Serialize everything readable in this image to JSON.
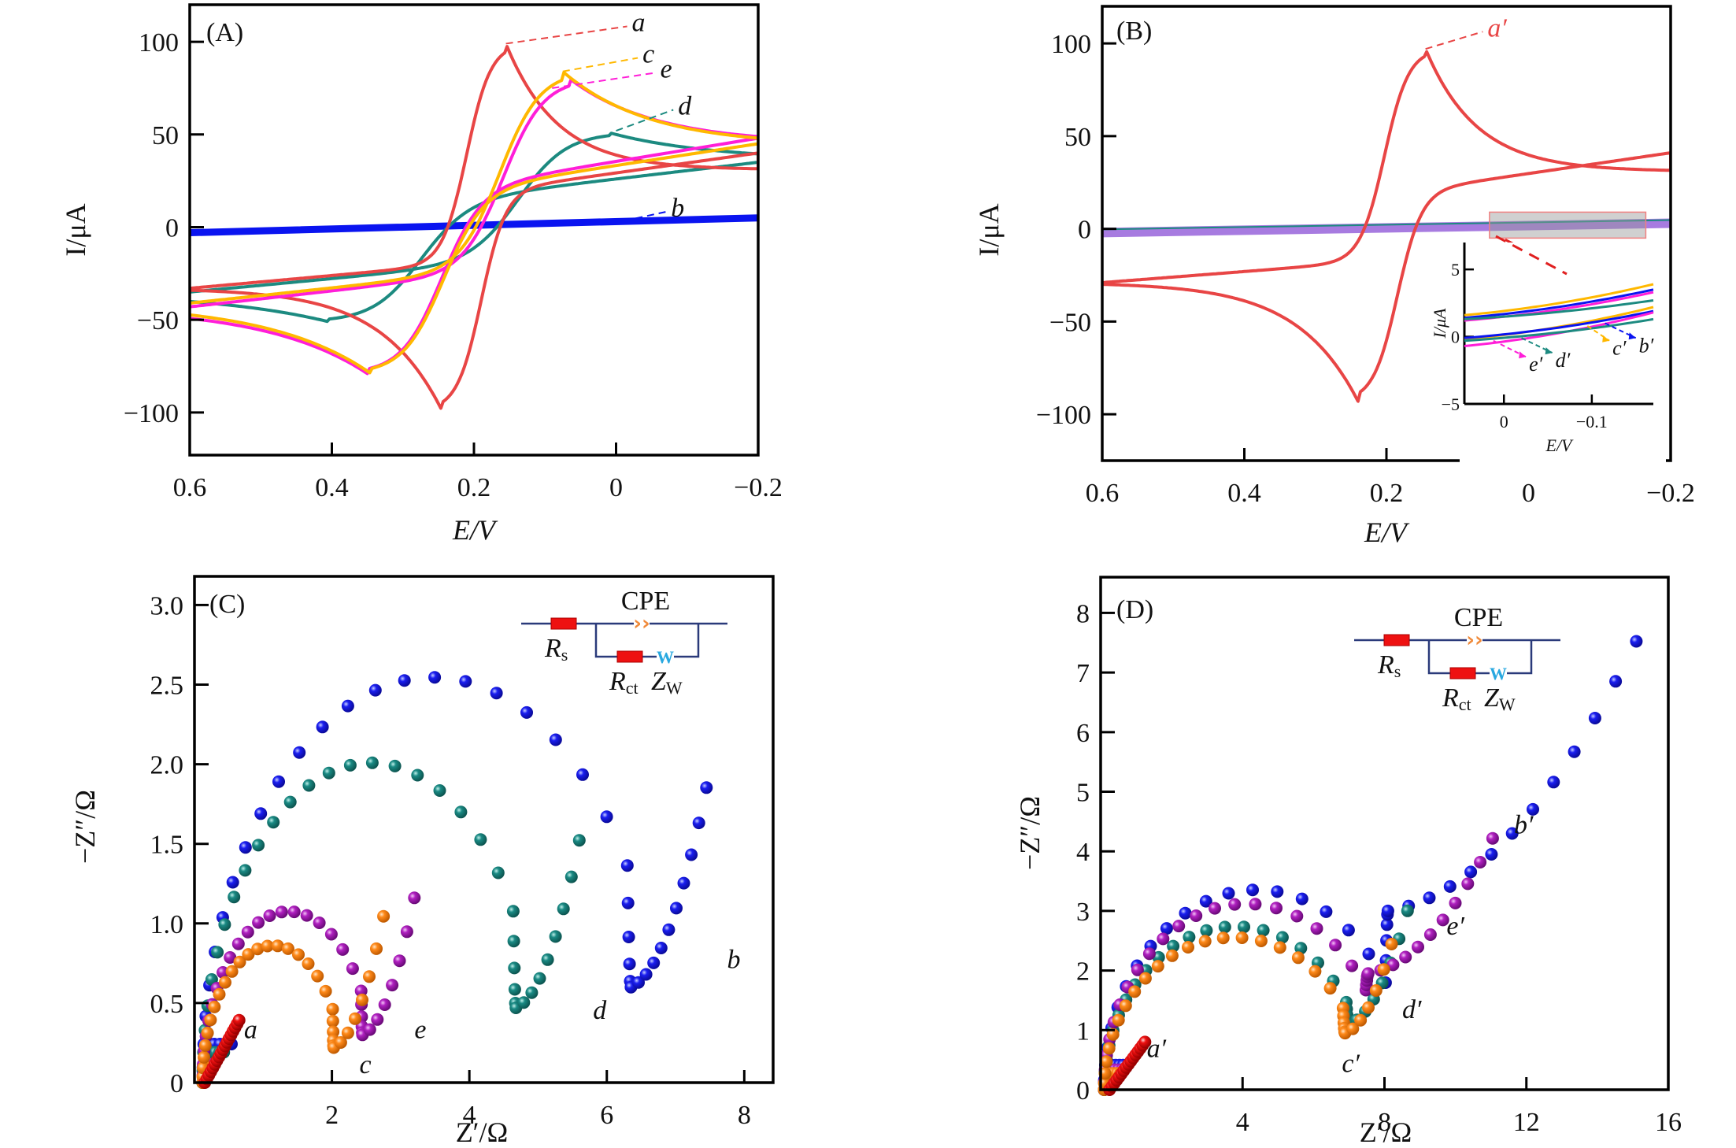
{
  "figure": {
    "panels": [
      "A",
      "B",
      "C",
      "D"
    ]
  },
  "colors": {
    "a": "#e84545",
    "b": "#0a14f0",
    "c": "#ffb800",
    "d": "#1c8a80",
    "e": "#ff1ed8",
    "bprime_flat": "#a77be0",
    "eis_a": "#ee1010",
    "eis_b": "#1616e6",
    "eis_c": "#ff8a1a",
    "eis_d": "#1a8a84",
    "eis_e": "#b020c0",
    "resistor": "#ee1111",
    "wire": "#2a3a7a",
    "cpe": "#f08a3a",
    "warburg": "#28a8e0"
  },
  "chart_data": [
    {
      "id": "A",
      "type": "line",
      "panel_tag": "(A)",
      "xlabel": "E/V",
      "ylabel": "I/μA",
      "xlim": [
        0.6,
        -0.2
      ],
      "ylim": [
        -123,
        120
      ],
      "xticks": [
        0.6,
        0.4,
        0.2,
        0,
        -0.2
      ],
      "xtick_labels": [
        "0.6",
        "0.4",
        "0.2",
        "0",
        "−0.2"
      ],
      "yticks": [
        100,
        50,
        0,
        -50,
        -100
      ],
      "ytick_labels": [
        "100",
        "50",
        "0",
        "−50",
        "−100"
      ],
      "series": [
        {
          "name": "a",
          "color_key": "a",
          "Epa": 0.155,
          "Ipa": 99,
          "Epc": 0.245,
          "Ipc": -99,
          "width": 0.045,
          "start_ox": -33,
          "end_ox": 31,
          "start_red": -33,
          "end_red": 40,
          "cross_ox": 0.265,
          "cross_red": 0.135
        },
        {
          "name": "b",
          "color_key": "b",
          "flat": true,
          "start": -3,
          "end": 5
        },
        {
          "name": "c",
          "color_key": "c",
          "Epa": 0.075,
          "Ipa": 84,
          "Epc": 0.345,
          "Ipc": -79,
          "width": 0.075,
          "start_ox": -41,
          "end_ox": 44,
          "start_red": -41,
          "end_red": 45,
          "cross_ox": 0.25,
          "cross_red": 0.145
        },
        {
          "name": "d",
          "color_key": "d",
          "Epa": 0.01,
          "Ipa": 51,
          "Epc": 0.405,
          "Ipc": -51,
          "width": 0.09,
          "start_ox": -35,
          "end_ox": 36,
          "start_red": -35,
          "end_red": 35,
          "cross_ox": 0.26,
          "cross_red": 0.15
        },
        {
          "name": "e",
          "color_key": "e",
          "Epa": 0.065,
          "Ipa": 80,
          "Epc": 0.35,
          "Ipc": -79,
          "width": 0.075,
          "start_ox": -43,
          "end_ox": 45,
          "start_red": -43,
          "end_red": 48,
          "cross_ox": 0.25,
          "cross_red": 0.145
        }
      ],
      "annotations": [
        {
          "text": "a",
          "series": "a",
          "at_E": 0.155,
          "at_I": 99,
          "to_E": -0.02,
          "to_I": 110
        },
        {
          "text": "c",
          "series": "c",
          "at_E": 0.075,
          "at_I": 84,
          "to_E": -0.035,
          "to_I": 93
        },
        {
          "text": "e",
          "series": "e",
          "at_E": 0.09,
          "at_I": 75,
          "to_E": -0.06,
          "to_I": 85
        },
        {
          "text": "d",
          "series": "d",
          "at_E": 0.0,
          "at_I": 52,
          "to_E": -0.085,
          "to_I": 65
        },
        {
          "text": "b",
          "series": "b",
          "at_E": 0.005,
          "at_I": 2,
          "to_E": -0.075,
          "to_I": 10
        }
      ]
    },
    {
      "id": "B",
      "type": "line",
      "panel_tag": "(B)",
      "xlabel": "E/V",
      "ylabel": "I/μA",
      "xlim": [
        0.6,
        -0.2
      ],
      "ylim": [
        -125,
        120
      ],
      "xticks": [
        0.6,
        0.4,
        0.2,
        0,
        -0.2
      ],
      "xtick_labels": [
        "0.6",
        "0.4",
        "0.2",
        "0",
        "−0.2"
      ],
      "yticks": [
        100,
        50,
        0,
        -50,
        -100
      ],
      "ytick_labels": [
        "100",
        "50",
        "0",
        "−50",
        "−100"
      ],
      "series": [
        {
          "name": "a′",
          "color_key": "a",
          "Epa": 0.145,
          "Ipa": 97,
          "Epc": 0.24,
          "Ipc": -93,
          "width": 0.045,
          "start_ox": -29,
          "end_ox": 31,
          "start_red": -29,
          "end_red": 41,
          "cross_ox": 0.26,
          "cross_red": 0.13
        },
        {
          "name": "b′–e′ (flat)",
          "color_key": "bprime_flat",
          "flat": true,
          "start": -2,
          "end": 3
        }
      ],
      "annotations": [
        {
          "text": "a′",
          "series": "a′",
          "at_E": 0.145,
          "at_I": 97,
          "to_E": 0.06,
          "to_I": 108
        }
      ],
      "zoom_box": {
        "E": [
          0.055,
          -0.165
        ],
        "I": [
          -5,
          9
        ]
      },
      "inset": {
        "xlabel": "E/V",
        "ylabel": "I/μA",
        "xlim": [
          0.045,
          -0.17
        ],
        "ylim": [
          -5,
          7
        ],
        "xticks": [
          0,
          -0.1
        ],
        "xtick_labels": [
          "0",
          "−0.1"
        ],
        "yticks": [
          5,
          0,
          -5
        ],
        "ytick_labels": [
          "5",
          "0",
          "−5"
        ],
        "series": [
          {
            "name": "c′",
            "color_key": "c",
            "upper": [
              1.6,
              3.9
            ],
            "lower": [
              -0.2,
              2.2
            ]
          },
          {
            "name": "b′",
            "color_key": "b",
            "upper": [
              1.4,
              3.5
            ],
            "lower": [
              -0.1,
              1.9
            ]
          },
          {
            "name": "e′",
            "color_key": "e",
            "upper": [
              1.2,
              3.3
            ],
            "lower": [
              -0.7,
              1.8
            ]
          },
          {
            "name": "d′",
            "color_key": "d",
            "upper": [
              1.3,
              2.7
            ],
            "lower": [
              -0.3,
              1.3
            ]
          }
        ],
        "labels": [
          {
            "text": "e′",
            "color_key": "e",
            "from_E": 0.012,
            "from_I": -0.3,
            "to_E": -0.025,
            "to_I": -1.5
          },
          {
            "text": "d′",
            "color_key": "d",
            "from_E": -0.02,
            "from_I": -0.1,
            "to_E": -0.055,
            "to_I": -1.2
          },
          {
            "text": "c′",
            "color_key": "c",
            "from_E": -0.095,
            "from_I": 0.8,
            "to_E": -0.12,
            "to_I": -0.3
          },
          {
            "text": "b′",
            "color_key": "b",
            "from_E": -0.115,
            "from_I": 1.0,
            "to_E": -0.15,
            "to_I": -0.1
          }
        ]
      }
    },
    {
      "id": "C",
      "type": "scatter",
      "panel_tag": "(C)",
      "xlabel": "Z′/Ω",
      "ylabel": "−Z″/Ω",
      "xlim": [
        0,
        8.42
      ],
      "ylim": [
        0,
        3.18
      ],
      "xticks": [
        2,
        4,
        6,
        8
      ],
      "xtick_labels": [
        "2",
        "4",
        "6",
        "8"
      ],
      "yticks": [
        0,
        0.5,
        1.0,
        1.5,
        2.0,
        2.5,
        3.0
      ],
      "ytick_labels": [
        "0",
        "0.5",
        "1.0",
        "1.5",
        "2.0",
        "2.5",
        "3.0"
      ],
      "series": [
        {
          "name": "a",
          "color_key": "eis_a",
          "Rs": 0.15,
          "Rct": 0,
          "tail_slope": 0.98,
          "tail_end": 0.65,
          "n_semi": 0,
          "n_tail": 18,
          "label_x": 0.72,
          "label_y": 0.28
        },
        {
          "name": "b",
          "color_key": "eis_b",
          "Rs": 0.12,
          "Rct": 6.7,
          "depress": 0.76,
          "n_semi": 24,
          "tail_end": 7.45,
          "min_y": 0.6,
          "n_tail": 10,
          "label_x": 7.75,
          "label_y": 0.72
        },
        {
          "name": "c",
          "color_key": "eis_c",
          "Rs": 0.12,
          "Rct": 2.05,
          "depress": 0.84,
          "n_semi": 22,
          "tail_end": 2.75,
          "min_y": 0.22,
          "n_tail": 7,
          "label_x": 2.4,
          "label_y": 0.06
        },
        {
          "name": "d",
          "color_key": "eis_d",
          "Rs": 0.12,
          "Rct": 4.9,
          "depress": 0.82,
          "n_semi": 24,
          "tail_end": 5.6,
          "min_y": 0.47,
          "n_tail": 8,
          "label_x": 5.8,
          "label_y": 0.4
        },
        {
          "name": "e",
          "color_key": "eis_e",
          "Rs": 0.12,
          "Rct": 2.5,
          "depress": 0.86,
          "n_semi": 22,
          "tail_end": 3.2,
          "min_y": 0.3,
          "n_tail": 7,
          "label_x": 3.2,
          "label_y": 0.28
        }
      ],
      "circuit": {
        "title": "CPE",
        "rs_label": "R",
        "rs_sub": "s",
        "rct_label": "R",
        "rct_sub": "ct",
        "zw_label": "Z",
        "zw_sub": "W",
        "w_symbol": "W",
        "cpe_symbol": "››"
      }
    },
    {
      "id": "D",
      "type": "scatter",
      "panel_tag": "(D)",
      "xlabel": "Z′/Ω",
      "ylabel": "−Z″/Ω",
      "xlim": [
        0,
        16
      ],
      "ylim": [
        0,
        8.6
      ],
      "xticks": [
        4,
        8,
        12,
        16
      ],
      "xtick_labels": [
        "4",
        "8",
        "12",
        "16"
      ],
      "yticks": [
        0,
        1,
        2,
        3,
        4,
        5,
        6,
        7,
        8
      ],
      "ytick_labels": [
        "0",
        "1",
        "2",
        "3",
        "4",
        "5",
        "6",
        "7",
        "8"
      ],
      "series": [
        {
          "name": "a′",
          "color_key": "eis_a",
          "Rs": 0.25,
          "Rct": 0,
          "tail_slope": 1.0,
          "tail_end": 1.25,
          "n_semi": 0,
          "n_tail": 16,
          "label_x": 1.3,
          "label_y": 0.55
        },
        {
          "name": "b′",
          "color_key": "eis_b",
          "Rs": 0.1,
          "Rct": 8.6,
          "depress": 0.78,
          "n_semi": 20,
          "min_y": 3.0,
          "tail_end": 15.1,
          "n_tail": 12,
          "label_x": 11.65,
          "label_y": 4.3
        },
        {
          "name": "c′",
          "color_key": "eis_c",
          "Rs": 0.1,
          "Rct": 7.3,
          "depress": 0.7,
          "n_semi": 22,
          "min_y": 0.95,
          "tail_end": 8.2,
          "n_tail": 6,
          "label_x": 6.8,
          "label_y": 0.3
        },
        {
          "name": "d′",
          "color_key": "eis_d",
          "Rs": 0.1,
          "Rct": 7.4,
          "depress": 0.74,
          "n_semi": 22,
          "min_y": 1.1,
          "tail_end": 8.65,
          "n_tail": 7,
          "label_x": 8.5,
          "label_y": 1.2
        },
        {
          "name": "e′",
          "color_key": "eis_e",
          "Rs": 0.1,
          "Rct": 8.0,
          "depress": 0.78,
          "n_semi": 22,
          "min_y": 1.95,
          "tail_end": 11.05,
          "n_tail": 10,
          "label_x": 9.75,
          "label_y": 2.6
        }
      ],
      "circuit": {
        "title": "CPE",
        "rs_label": "R",
        "rs_sub": "s",
        "rct_label": "R",
        "rct_sub": "ct",
        "zw_label": "Z",
        "zw_sub": "W",
        "w_symbol": "W",
        "cpe_symbol": "››"
      }
    }
  ]
}
